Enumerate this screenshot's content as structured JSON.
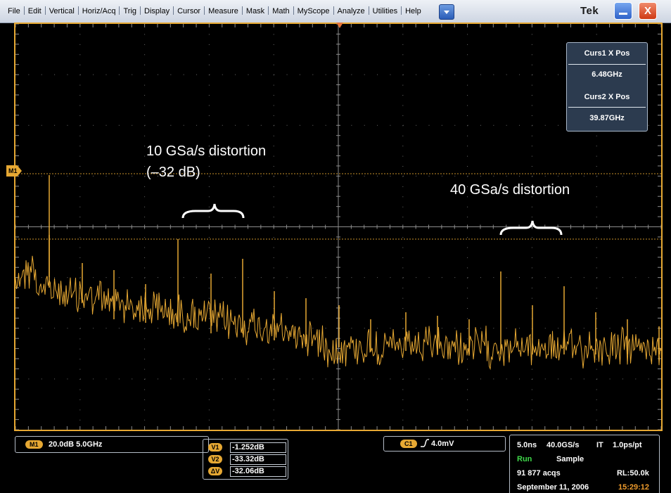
{
  "menubar": {
    "items": [
      "File",
      "Edit",
      "Vertical",
      "Horiz/Acq",
      "Trig",
      "Display",
      "Cursor",
      "Measure",
      "Mask",
      "Math",
      "MyScope",
      "Analyze",
      "Utilities",
      "Help"
    ],
    "brand": "Tek",
    "close_glyph": "X"
  },
  "annotations": {
    "dist10_line1": "10 GSa/s distortion",
    "dist10_line2": "(–32 dB)",
    "dist40": "40 GSa/s distortion"
  },
  "cursor_readout": {
    "curs1_label": "Curs1 X Pos",
    "curs1_value": "6.48GHz",
    "curs2_label": "Curs2 X Pos",
    "curs2_value": "39.87GHz"
  },
  "markers": {
    "math_marker": "M1"
  },
  "bottom": {
    "math": {
      "badge": "M1",
      "settings": "20.0dB  5.0GHz"
    },
    "v_readout": [
      {
        "badge": "V1",
        "value": "-1.252dB"
      },
      {
        "badge": "V2",
        "value": "-33.32dB"
      },
      {
        "badge": "ΔV",
        "value": "-32.06dB"
      }
    ],
    "trigger": {
      "badge": "C1",
      "level": "4.0mV"
    },
    "acquisition": {
      "timebase": "5.0ns",
      "sample_rate": "40.0GS/s",
      "mode_label": "IT",
      "resolution": "1.0ps/pt",
      "state": "Run",
      "acq_mode": "Sample",
      "acq_count": "91 877 acqs",
      "record_length": "RL:50.0k",
      "date": "September 11, 2006",
      "time": "15:29:12"
    }
  },
  "colors": {
    "trace": "#e6a833",
    "frame": "#e6a833",
    "run_state": "#3fd84a",
    "clock": "#ee9b2c"
  }
}
